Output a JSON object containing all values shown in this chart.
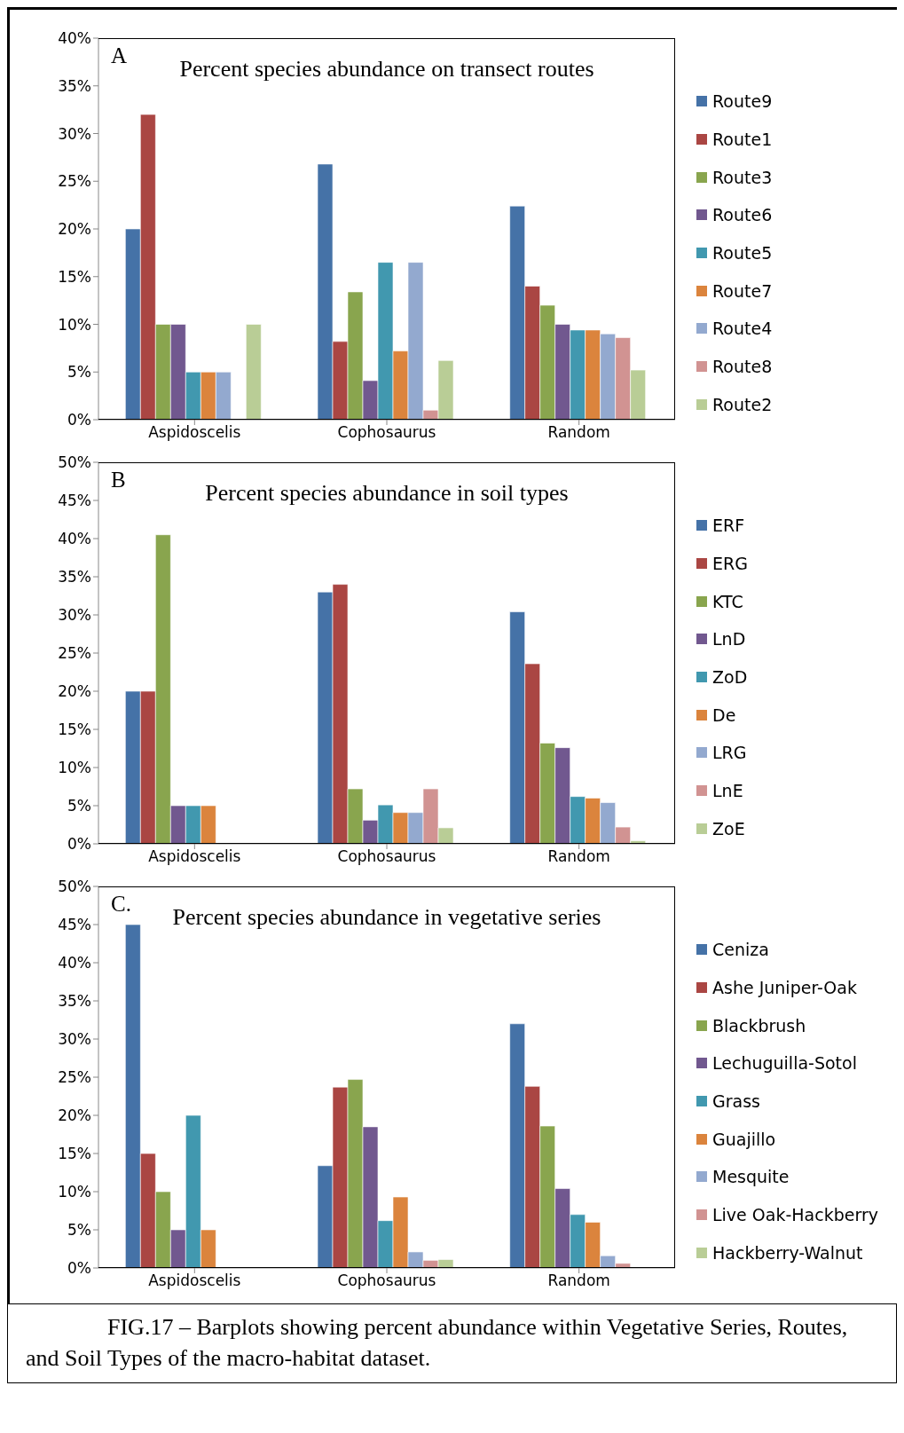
{
  "chart_data": [
    {
      "type": "bar",
      "title": "Percent species abundance on transect routes",
      "annotations": [
        "A"
      ],
      "categories": [
        "Aspidoscelis",
        "Cophosaurus",
        "Random"
      ],
      "series": [
        {
          "name": "Route9",
          "color": "#4572a7",
          "values": [
            20,
            26.8,
            22.4
          ]
        },
        {
          "name": "Route1",
          "color": "#aa4643",
          "values": [
            32,
            8.2,
            14.0
          ]
        },
        {
          "name": "Route3",
          "color": "#89a54e",
          "values": [
            10,
            13.4,
            12.0
          ]
        },
        {
          "name": "Route6",
          "color": "#71588f",
          "values": [
            10,
            4.1,
            10.0
          ]
        },
        {
          "name": "Route5",
          "color": "#4198af",
          "values": [
            5,
            16.5,
            9.4
          ]
        },
        {
          "name": "Route7",
          "color": "#db843d",
          "values": [
            5,
            7.2,
            9.4
          ]
        },
        {
          "name": "Route4",
          "color": "#93a9cf",
          "values": [
            5,
            16.5,
            9.0
          ]
        },
        {
          "name": "Route8",
          "color": "#d19392",
          "values": [
            null,
            1.0,
            8.6
          ]
        },
        {
          "name": "Route2",
          "color": "#b9cd96",
          "values": [
            10,
            6.2,
            5.2
          ]
        }
      ],
      "ylim": [
        0,
        40
      ],
      "yticks": [
        {
          "value": 0,
          "label": "0%"
        },
        {
          "value": 5,
          "label": "5%"
        },
        {
          "value": 10,
          "label": "10%"
        },
        {
          "value": 15,
          "label": "15%"
        },
        {
          "value": 20,
          "label": "20%"
        },
        {
          "value": 25,
          "label": "25%"
        },
        {
          "value": 30,
          "label": "30%"
        },
        {
          "value": 35,
          "label": "35%"
        },
        {
          "value": 40,
          "label": "40%"
        }
      ],
      "grid": false,
      "legend": "right"
    },
    {
      "type": "bar",
      "title": "Percent species abundance in soil types",
      "annotations": [
        "B"
      ],
      "categories": [
        "Aspidoscelis",
        "Cophosaurus",
        "Random"
      ],
      "series": [
        {
          "name": "ERF",
          "color": "#4572a7",
          "values": [
            20,
            33,
            30.4
          ]
        },
        {
          "name": "ERG",
          "color": "#aa4643",
          "values": [
            20,
            34,
            23.6
          ]
        },
        {
          "name": "KTC",
          "color": "#89a54e",
          "values": [
            40.5,
            7.2,
            13.2
          ]
        },
        {
          "name": "LnD",
          "color": "#71588f",
          "values": [
            5,
            3.1,
            12.6
          ]
        },
        {
          "name": "ZoD",
          "color": "#4198af",
          "values": [
            5,
            5.1,
            6.2
          ]
        },
        {
          "name": "De",
          "color": "#db843d",
          "values": [
            5,
            4.1,
            6.0
          ]
        },
        {
          "name": "LRG",
          "color": "#93a9cf",
          "values": [
            null,
            4.1,
            5.4
          ]
        },
        {
          "name": "LnE",
          "color": "#d19392",
          "values": [
            null,
            7.2,
            2.2
          ]
        },
        {
          "name": "ZoE",
          "color": "#b9cd96",
          "values": [
            null,
            2.1,
            0.4
          ]
        }
      ],
      "ylim": [
        0,
        50
      ],
      "yticks": [
        {
          "value": 0,
          "label": "0%"
        },
        {
          "value": 5,
          "label": "5%"
        },
        {
          "value": 10,
          "label": "10%"
        },
        {
          "value": 15,
          "label": "15%"
        },
        {
          "value": 20,
          "label": "20%"
        },
        {
          "value": 25,
          "label": "25%"
        },
        {
          "value": 30,
          "label": "30%"
        },
        {
          "value": 35,
          "label": "35%"
        },
        {
          "value": 40,
          "label": "40%"
        },
        {
          "value": 45,
          "label": "45%"
        },
        {
          "value": 50,
          "label": "50%"
        }
      ],
      "grid": false,
      "legend": "right"
    },
    {
      "type": "bar",
      "title": "Percent species abundance in vegetative series",
      "annotations": [
        "C.",
        "FIG.17 – Barplots showing percent abundance within Vegetative Series, Routes, and Soil Types of the macro-habitat dataset."
      ],
      "categories": [
        "Aspidoscelis",
        "Cophosaurus",
        "Random"
      ],
      "series": [
        {
          "name": "Ceniza",
          "color": "#4572a7",
          "values": [
            45,
            13.4,
            32
          ]
        },
        {
          "name": "Ashe Juniper-Oak",
          "color": "#aa4643",
          "values": [
            15,
            23.7,
            23.8
          ]
        },
        {
          "name": "Blackbrush",
          "color": "#89a54e",
          "values": [
            10,
            24.7,
            18.6
          ]
        },
        {
          "name": "Lechuguilla-Sotol",
          "color": "#71588f",
          "values": [
            5,
            18.5,
            10.4
          ]
        },
        {
          "name": "Grass",
          "color": "#4198af",
          "values": [
            20,
            6.2,
            7.0
          ]
        },
        {
          "name": "Guajillo",
          "color": "#db843d",
          "values": [
            5,
            9.3,
            6.0
          ]
        },
        {
          "name": "Mesquite",
          "color": "#93a9cf",
          "values": [
            null,
            2.1,
            1.6
          ]
        },
        {
          "name": "Live Oak-Hackberry",
          "color": "#d19392",
          "values": [
            null,
            1.0,
            0.6
          ]
        },
        {
          "name": "Hackberry-Walnut",
          "color": "#b9cd96",
          "values": [
            null,
            1.1,
            null
          ]
        }
      ],
      "ylim": [
        0,
        50
      ],
      "yticks": [
        {
          "value": 0,
          "label": "0%"
        },
        {
          "value": 5,
          "label": "5%"
        },
        {
          "value": 10,
          "label": "10%"
        },
        {
          "value": 15,
          "label": "15%"
        },
        {
          "value": 20,
          "label": "20%"
        },
        {
          "value": 25,
          "label": "25%"
        },
        {
          "value": 30,
          "label": "30%"
        },
        {
          "value": 35,
          "label": "35%"
        },
        {
          "value": 40,
          "label": "40%"
        },
        {
          "value": 45,
          "label": "45%"
        },
        {
          "value": 50,
          "label": "50%"
        }
      ],
      "grid": false,
      "legend": "right"
    }
  ]
}
